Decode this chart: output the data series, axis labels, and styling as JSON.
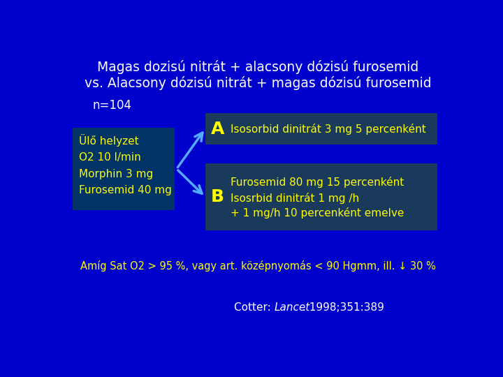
{
  "bg_color": "#0000cc",
  "title_line1": "Magas dozisú nitrát + alacsony dózisú furosemid",
  "title_line2": "vs. Alacsony dózisú nitrát + magas dózisú furosemid",
  "title_color": "#ffffff",
  "n_label": "n=104",
  "n_label_color": "#ffffff",
  "left_box_text": "Ülő helyzet\nO2 10 l/min\nMorphin 3 mg\nFurosemid 40 mg",
  "left_box_bg": "#003366",
  "left_box_text_color": "#ffff00",
  "box_a_label": "A",
  "box_a_bg": "#1a3a5c",
  "box_a_text_color": "#ffff00",
  "box_a_text": "Isosorbid dinitrát 3 mg 5 percenként",
  "box_b_label": "B",
  "box_b_bg": "#1a3a5c",
  "box_b_text_color": "#ffff00",
  "box_b_line1": "Furosemid 80 mg 15 percenként",
  "box_b_line2": "Isosrbid dinitrát 1 mg /h",
  "box_b_line3": "+ 1 mg/h 10 percenként emelve",
  "arrow_color": "#55aaff",
  "bottom_text": "Amíg Sat O2 > 95 %, vagy art. középnyomás < 90 Hgmm, ill. ↓ 30 %",
  "bottom_text_color": "#ffff00",
  "citation_color": "#ffffff"
}
